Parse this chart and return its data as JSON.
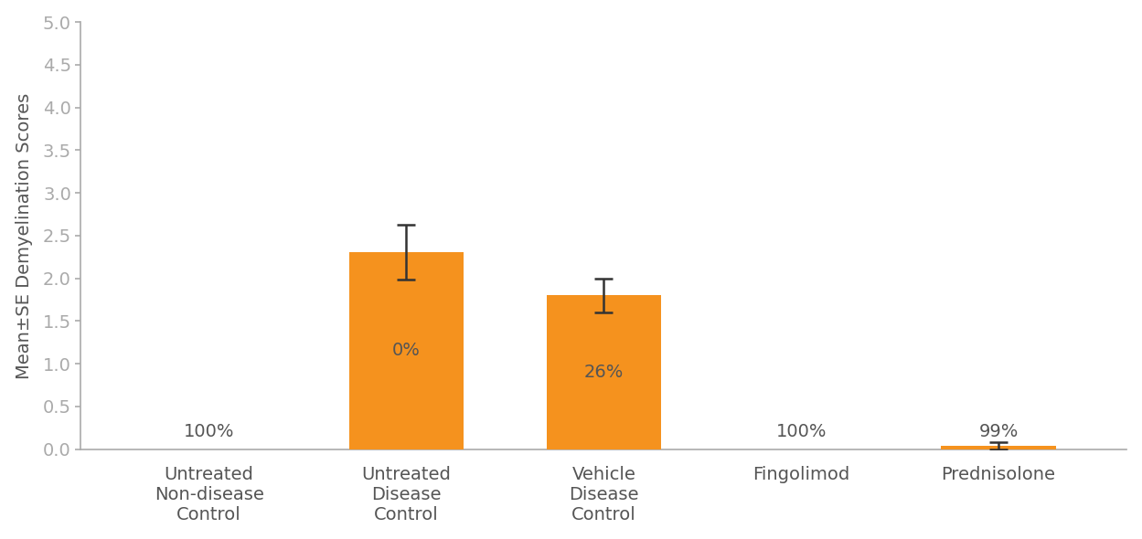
{
  "categories": [
    "Untreated\nNon-disease\nControl",
    "Untreated\nDisease\nControl",
    "Vehicle\nDisease\nControl",
    "Fingolimod",
    "Prednisolone"
  ],
  "values": [
    0.0,
    2.31,
    1.8,
    0.0,
    0.04
  ],
  "errors": [
    0.0,
    0.32,
    0.2,
    0.0,
    0.04
  ],
  "bar_color": "#F5921E",
  "labels": [
    "100%",
    "0%",
    "26%",
    "100%",
    "99%"
  ],
  "ylabel": "Mean±SE Demyelination Scores",
  "ylim": [
    0,
    5.0
  ],
  "yticks": [
    0.0,
    0.5,
    1.0,
    1.5,
    2.0,
    2.5,
    3.0,
    3.5,
    4.0,
    4.5,
    5.0
  ],
  "bar_width": 0.58,
  "background_color": "#ffffff",
  "text_color": "#555555",
  "axis_color": "#aaaaaa",
  "label_fontsize": 14,
  "tick_fontsize": 14,
  "ylabel_fontsize": 14
}
